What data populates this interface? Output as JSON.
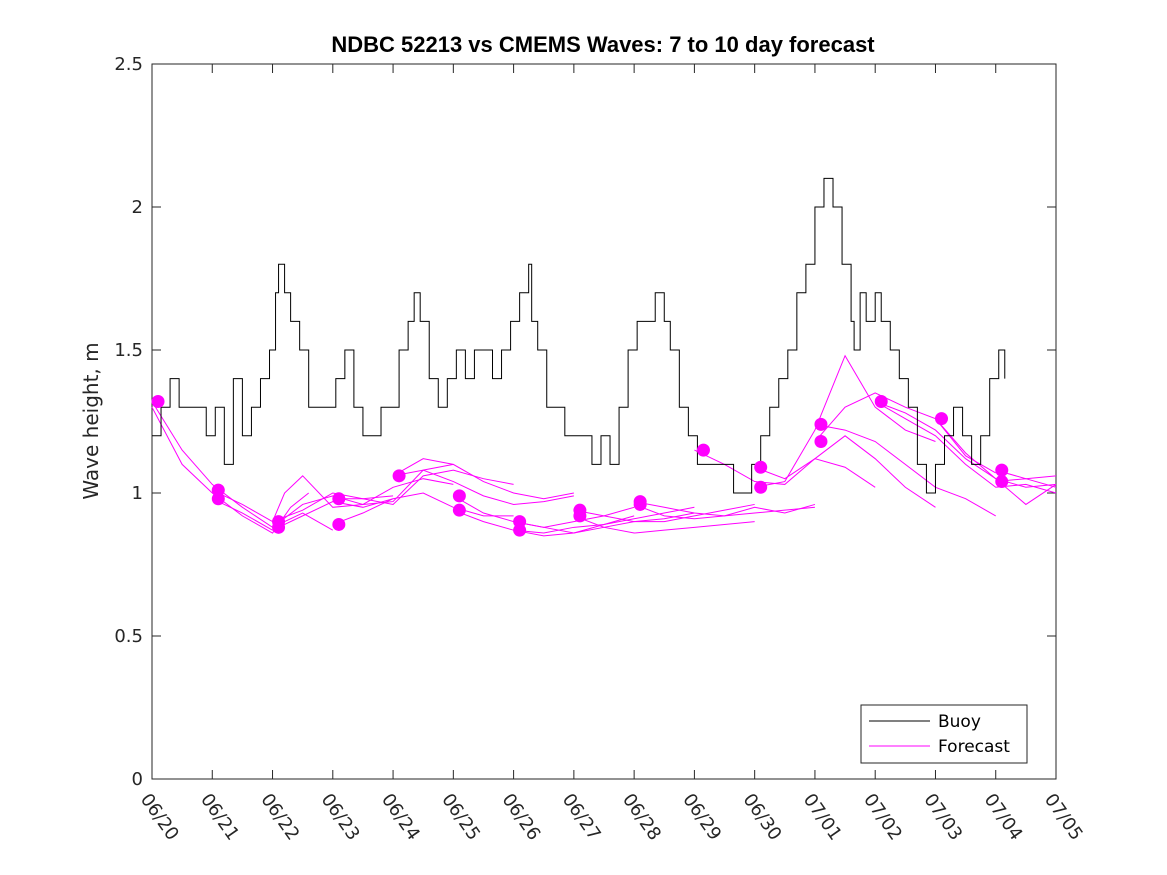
{
  "chart_data": {
    "type": "line",
    "title": "NDBC 52213 vs CMEMS Waves: 7 to 10 day forecast",
    "xlabel": "",
    "ylabel": "Wave height, m",
    "xlim": [
      0,
      15
    ],
    "ylim": [
      0,
      2.5
    ],
    "x_unit": "days (0 = 06/20)",
    "xtick_labels": [
      "06/20",
      "06/21",
      "06/22",
      "06/23",
      "06/24",
      "06/25",
      "06/26",
      "06/27",
      "06/28",
      "06/29",
      "06/30",
      "07/01",
      "07/02",
      "07/03",
      "07/04",
      "07/05"
    ],
    "yticks": [
      0,
      0.5,
      1,
      1.5,
      2,
      2.5
    ],
    "ytick_labels": [
      "0",
      "0.5",
      "1",
      "1.5",
      "2",
      "2.5"
    ],
    "grid": false,
    "legend": {
      "position": "bottom-right",
      "entries": [
        {
          "label": "Buoy",
          "color": "#000000"
        },
        {
          "label": "Forecast",
          "color": "#ff00ff"
        }
      ]
    },
    "series": [
      {
        "name": "Buoy",
        "color": "#000000",
        "x": [
          0,
          0.15,
          0.3,
          0.45,
          0.6,
          0.75,
          0.9,
          1.05,
          1.2,
          1.35,
          1.5,
          1.65,
          1.8,
          1.95,
          2.05,
          2.1,
          2.2,
          2.3,
          2.45,
          2.6,
          2.75,
          2.9,
          3.05,
          3.2,
          3.35,
          3.5,
          3.65,
          3.8,
          3.95,
          4.1,
          4.25,
          4.35,
          4.45,
          4.6,
          4.75,
          4.9,
          5.05,
          5.2,
          5.35,
          5.5,
          5.65,
          5.8,
          5.95,
          6.1,
          6.25,
          6.3,
          6.4,
          6.55,
          6.7,
          6.85,
          7.0,
          7.15,
          7.3,
          7.45,
          7.6,
          7.75,
          7.9,
          8.05,
          8.2,
          8.35,
          8.5,
          8.6,
          8.75,
          8.9,
          9.05,
          9.2,
          9.35,
          9.5,
          9.65,
          9.8,
          9.95,
          10.1,
          10.25,
          10.4,
          10.55,
          10.7,
          10.85,
          11.0,
          11.15,
          11.3,
          11.45,
          11.6,
          11.65,
          11.75,
          11.85,
          12.0,
          12.1,
          12.25,
          12.4,
          12.55,
          12.7,
          12.85,
          13.0,
          13.15,
          13.3,
          13.45,
          13.6,
          13.75,
          13.9,
          14.05,
          14.15
        ],
        "y": [
          1.2,
          1.3,
          1.4,
          1.3,
          1.3,
          1.3,
          1.2,
          1.3,
          1.1,
          1.4,
          1.2,
          1.3,
          1.4,
          1.5,
          1.7,
          1.8,
          1.7,
          1.6,
          1.5,
          1.3,
          1.3,
          1.3,
          1.4,
          1.5,
          1.3,
          1.2,
          1.2,
          1.3,
          1.3,
          1.5,
          1.6,
          1.7,
          1.6,
          1.4,
          1.3,
          1.4,
          1.5,
          1.4,
          1.5,
          1.5,
          1.4,
          1.5,
          1.6,
          1.7,
          1.8,
          1.6,
          1.5,
          1.3,
          1.3,
          1.2,
          1.2,
          1.2,
          1.1,
          1.2,
          1.1,
          1.3,
          1.5,
          1.6,
          1.6,
          1.7,
          1.6,
          1.5,
          1.3,
          1.2,
          1.1,
          1.1,
          1.1,
          1.1,
          1.0,
          1.0,
          1.1,
          1.2,
          1.3,
          1.4,
          1.5,
          1.7,
          1.8,
          2.0,
          2.1,
          2.0,
          1.8,
          1.6,
          1.5,
          1.7,
          1.6,
          1.7,
          1.6,
          1.5,
          1.4,
          1.3,
          1.1,
          1.0,
          1.1,
          1.2,
          1.3,
          1.2,
          1.1,
          1.2,
          1.4,
          1.5,
          1.4
        ]
      },
      {
        "name": "Forecast",
        "color": "#ff00ff",
        "runs": [
          {
            "x": [
              0,
              0.5,
              1.0,
              1.5,
              2.0,
              2.5,
              3.0
            ],
            "y": [
              1.32,
              1.15,
              1.03,
              0.95,
              0.88,
              0.93,
              0.87
            ]
          },
          {
            "x": [
              0,
              0.5,
              1.0,
              1.5,
              2.0,
              2.3,
              2.6
            ],
            "y": [
              1.3,
              1.1,
              1.0,
              0.92,
              0.86,
              0.95,
              1.0
            ]
          },
          {
            "x": [
              1.0,
              1.5,
              2.0,
              2.5,
              3.0,
              3.5,
              4.0
            ],
            "y": [
              1.01,
              0.96,
              0.9,
              0.94,
              1.0,
              0.98,
              0.99
            ]
          },
          {
            "x": [
              1.0,
              1.5,
              2.0,
              2.5,
              3.0,
              3.5,
              4.0
            ],
            "y": [
              0.98,
              0.93,
              0.87,
              0.92,
              0.97,
              0.95,
              0.98
            ]
          },
          {
            "x": [
              2.0,
              2.2,
              2.5,
              3.0,
              3.5,
              4.0,
              4.5,
              5.0
            ],
            "y": [
              0.9,
              1.0,
              1.06,
              0.95,
              0.96,
              0.97,
              1.08,
              1.1
            ]
          },
          {
            "x": [
              2.0,
              2.5,
              3.0,
              3.5,
              4.0,
              4.5,
              5.0
            ],
            "y": [
              0.88,
              0.96,
              0.99,
              0.96,
              1.02,
              1.05,
              1.03
            ]
          },
          {
            "x": [
              3.0,
              3.5,
              4.0,
              4.5,
              5.0,
              5.5,
              6.0
            ],
            "y": [
              0.98,
              0.98,
              0.96,
              1.06,
              1.08,
              1.05,
              1.03
            ]
          },
          {
            "x": [
              3.0,
              3.5,
              4.0,
              4.5,
              5.0,
              5.5,
              6.0
            ],
            "y": [
              0.89,
              0.93,
              0.98,
              1.0,
              0.95,
              0.92,
              0.92
            ]
          },
          {
            "x": [
              4.0,
              4.5,
              5.0,
              5.5,
              6.0,
              6.5,
              7.0
            ],
            "y": [
              1.06,
              1.12,
              1.1,
              1.04,
              1.0,
              0.98,
              1.0
            ]
          },
          {
            "x": [
              4.0,
              4.5,
              5.0,
              5.5,
              6.0,
              6.5,
              7.0
            ],
            "y": [
              1.06,
              1.08,
              1.04,
              0.99,
              0.96,
              0.97,
              0.99
            ]
          },
          {
            "x": [
              5.0,
              5.5,
              6.0,
              6.5,
              7.0,
              7.5,
              8.0
            ],
            "y": [
              0.99,
              0.93,
              0.9,
              0.88,
              0.9,
              0.92,
              0.95
            ]
          },
          {
            "x": [
              5.0,
              5.5,
              6.0,
              6.5,
              7.0,
              7.5,
              8.0
            ],
            "y": [
              0.94,
              0.9,
              0.87,
              0.86,
              0.88,
              0.89,
              0.92
            ]
          },
          {
            "x": [
              6.0,
              6.5,
              7.0,
              7.5,
              8.0,
              8.5,
              9.0
            ],
            "y": [
              0.9,
              0.88,
              0.86,
              0.88,
              0.9,
              0.91,
              0.93
            ]
          },
          {
            "x": [
              6.0,
              6.5,
              7.0,
              7.5,
              8.0,
              8.5,
              9.0
            ],
            "y": [
              0.87,
              0.85,
              0.86,
              0.89,
              0.91,
              0.93,
              0.95
            ]
          },
          {
            "x": [
              7.0,
              7.5,
              8.0,
              8.5,
              9.0,
              9.5,
              10.0
            ],
            "y": [
              0.94,
              0.92,
              0.9,
              0.9,
              0.92,
              0.94,
              0.96
            ]
          },
          {
            "x": [
              7.0,
              7.5,
              8.0,
              8.5,
              9.0,
              9.5,
              10.0
            ],
            "y": [
              0.92,
              0.88,
              0.86,
              0.87,
              0.88,
              0.89,
              0.9
            ]
          },
          {
            "x": [
              8.0,
              8.5,
              9.0,
              9.5,
              10.0,
              10.5,
              11.0
            ],
            "y": [
              0.97,
              0.95,
              0.93,
              0.92,
              0.95,
              0.93,
              0.96
            ]
          },
          {
            "x": [
              8.0,
              8.5,
              9.0,
              9.5,
              10.0,
              10.5,
              11.0
            ],
            "y": [
              0.96,
              0.92,
              0.91,
              0.92,
              0.93,
              0.94,
              0.95
            ]
          },
          {
            "x": [
              9.0,
              9.5,
              10.0,
              10.5,
              11.0,
              11.5,
              12.0
            ],
            "y": [
              1.15,
              1.1,
              1.04,
              1.03,
              1.12,
              1.09,
              1.02
            ]
          },
          {
            "x": [
              10.0,
              10.5,
              11.0,
              11.5,
              12.0,
              12.5,
              13.0
            ],
            "y": [
              1.09,
              1.05,
              1.12,
              1.2,
              1.12,
              1.02,
              0.95
            ]
          },
          {
            "x": [
              10.0,
              10.5,
              11.0,
              11.5,
              12.0,
              12.5,
              13.0
            ],
            "y": [
              1.02,
              1.04,
              1.22,
              1.48,
              1.3,
              1.22,
              1.18
            ]
          },
          {
            "x": [
              11.0,
              11.5,
              12.0,
              12.5,
              13.0,
              13.5,
              14.0
            ],
            "y": [
              1.24,
              1.22,
              1.18,
              1.1,
              1.02,
              0.98,
              0.92
            ]
          },
          {
            "x": [
              11.0,
              11.5,
              12.0,
              12.5,
              13.0,
              13.5,
              14.0
            ],
            "y": [
              1.18,
              1.3,
              1.35,
              1.3,
              1.26,
              1.13,
              1.07
            ]
          },
          {
            "x": [
              12.0,
              12.5,
              13.0,
              13.5,
              14.0,
              14.5,
              15.0
            ],
            "y": [
              1.32,
              1.28,
              1.22,
              1.12,
              1.05,
              1.02,
              1.03
            ]
          },
          {
            "x": [
              12.0,
              12.5,
              13.0,
              13.5,
              14.0,
              14.5,
              15.0
            ],
            "y": [
              1.32,
              1.26,
              1.2,
              1.1,
              1.02,
              1.03,
              1.0
            ]
          },
          {
            "x": [
              13.0,
              13.5,
              14.0,
              14.5,
              15.0
            ],
            "y": [
              1.26,
              1.14,
              1.05,
              0.96,
              1.03
            ]
          },
          {
            "x": [
              14.0,
              14.5,
              15.0
            ],
            "y": [
              1.08,
              1.05,
              1.06
            ]
          },
          {
            "x": [
              14.0,
              14.5,
              15.0
            ],
            "y": [
              1.04,
              1.05,
              1.02
            ]
          }
        ],
        "markers": {
          "x": [
            0.1,
            1.1,
            1.1,
            2.1,
            2.1,
            3.1,
            3.1,
            4.1,
            5.1,
            5.1,
            6.1,
            6.1,
            7.1,
            7.1,
            8.1,
            8.1,
            9.15,
            10.1,
            10.1,
            11.1,
            11.1,
            12.1,
            13.1,
            14.1,
            14.1
          ],
          "y": [
            1.32,
            1.01,
            0.98,
            0.9,
            0.88,
            0.98,
            0.89,
            1.06,
            0.99,
            0.94,
            0.9,
            0.87,
            0.94,
            0.92,
            0.97,
            0.96,
            1.15,
            1.09,
            1.02,
            1.24,
            1.18,
            1.32,
            1.26,
            1.08,
            1.04
          ]
        }
      }
    ]
  }
}
